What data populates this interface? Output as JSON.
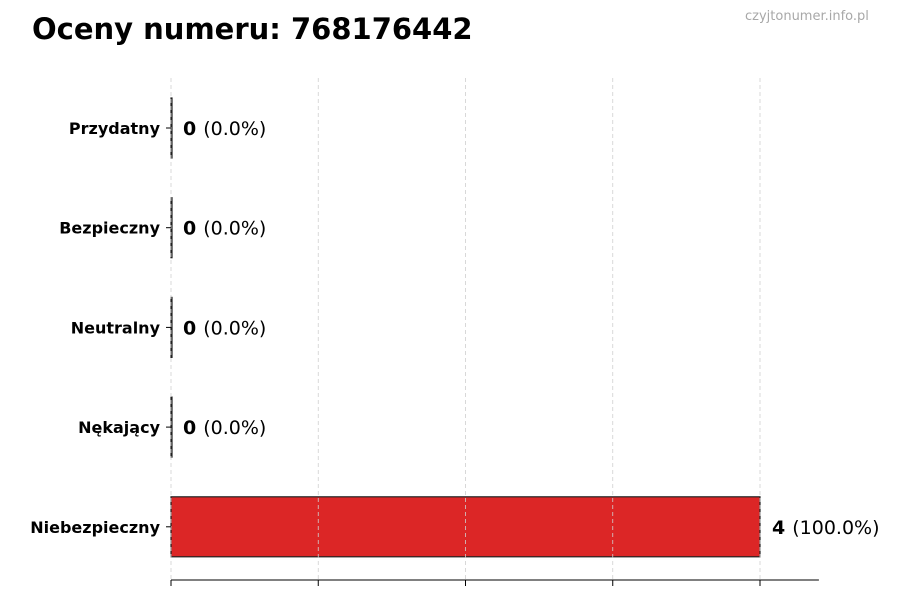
{
  "watermark": "czyjtonumer.info.pl",
  "chart_data": {
    "type": "bar",
    "orientation": "horizontal",
    "title": "Oceny numeru: 768176442",
    "categories": [
      "Przydatny",
      "Bezpieczny",
      "Neutralny",
      "Nękający",
      "Niebezpieczny"
    ],
    "values": [
      0,
      0,
      0,
      0,
      4
    ],
    "value_labels": [
      {
        "count": "0",
        "pct": "(0.0%)"
      },
      {
        "count": "0",
        "pct": "(0.0%)"
      },
      {
        "count": "0",
        "pct": "(0.0%)"
      },
      {
        "count": "0",
        "pct": "(0.0%)"
      },
      {
        "count": "4",
        "pct": "(100.0%)"
      }
    ],
    "colors": [
      "#2ca02c",
      "#2ca02c",
      "#888888",
      "#ff7f0e",
      "#dc2626"
    ],
    "xlim": [
      0,
      4.4
    ],
    "xticks": [
      0,
      1,
      2,
      3,
      4
    ],
    "grid": "x-dashed",
    "xlabel": "",
    "ylabel": ""
  }
}
